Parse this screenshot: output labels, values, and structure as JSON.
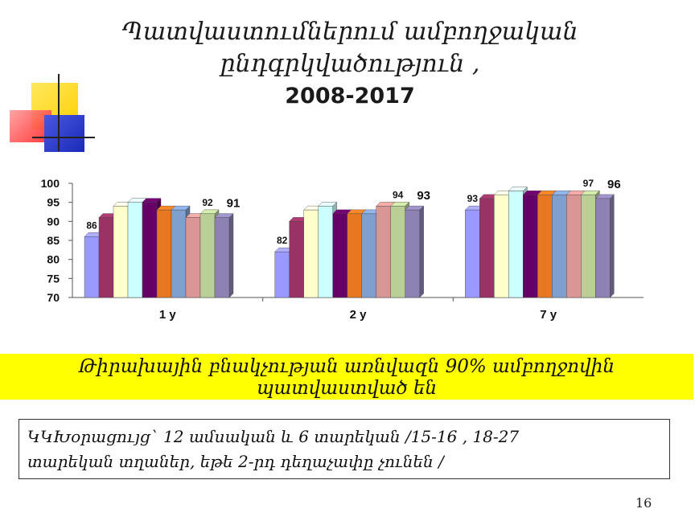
{
  "slide": {
    "title_line1": "Պատվաստումներում ամբողջական",
    "title_line2": "ընդգրկվածություն ,",
    "title_line3": "2008-2017",
    "banner_line1": "Թիրախային բնակչության առնվազն 90% ամբողջովին",
    "banner_line2": "պատվաստված են",
    "note_line1": "ԿԿԽօրացույց` 12 ամսական և 6 տարեկան /15-16 , 18-27",
    "note_line2": "տարեկան տղաներ, եթե 2-րդ դեղաչափը չունեն /",
    "page_number": "16"
  },
  "chart_data": {
    "type": "bar",
    "categories": [
      "1 y",
      "2 y",
      "7 y"
    ],
    "ylim": [
      70,
      100
    ],
    "yticks": [
      70,
      75,
      80,
      85,
      90,
      95,
      100
    ],
    "series": [
      {
        "color": "#9999ff",
        "values": [
          86,
          82,
          93
        ]
      },
      {
        "color": "#993366",
        "values": [
          91,
          90,
          96
        ]
      },
      {
        "color": "#ffffcc",
        "values": [
          94,
          93,
          97
        ]
      },
      {
        "color": "#ccffff",
        "values": [
          95,
          94,
          98
        ]
      },
      {
        "color": "#660066",
        "values": [
          95,
          92,
          97
        ]
      },
      {
        "color": "#e87722",
        "values": [
          93,
          92,
          97
        ]
      },
      {
        "color": "#7f9fcf",
        "values": [
          93,
          92,
          97
        ]
      },
      {
        "color": "#d99694",
        "values": [
          91,
          94,
          97
        ]
      },
      {
        "color": "#b9cf96",
        "values": [
          92,
          94,
          97
        ]
      },
      {
        "color": "#8e82b4",
        "values": [
          91,
          93,
          96
        ]
      }
    ],
    "data_labels": [
      {
        "category": "1 y",
        "series_index": 0,
        "text": "86"
      },
      {
        "category": "1 y",
        "series_index": 8,
        "text": "92"
      },
      {
        "category": "1 y",
        "series_index": 9,
        "text": "91"
      },
      {
        "category": "2 y",
        "series_index": 0,
        "text": "82"
      },
      {
        "category": "2 y",
        "series_index": 8,
        "text": "94"
      },
      {
        "category": "2 y",
        "series_index": 9,
        "text": "93"
      },
      {
        "category": "7 y",
        "series_index": 0,
        "text": "93"
      },
      {
        "category": "7 y",
        "series_index": 8,
        "text": "97"
      },
      {
        "category": "7 y",
        "series_index": 9,
        "text": "96"
      }
    ],
    "grid": false,
    "legend": "none"
  }
}
